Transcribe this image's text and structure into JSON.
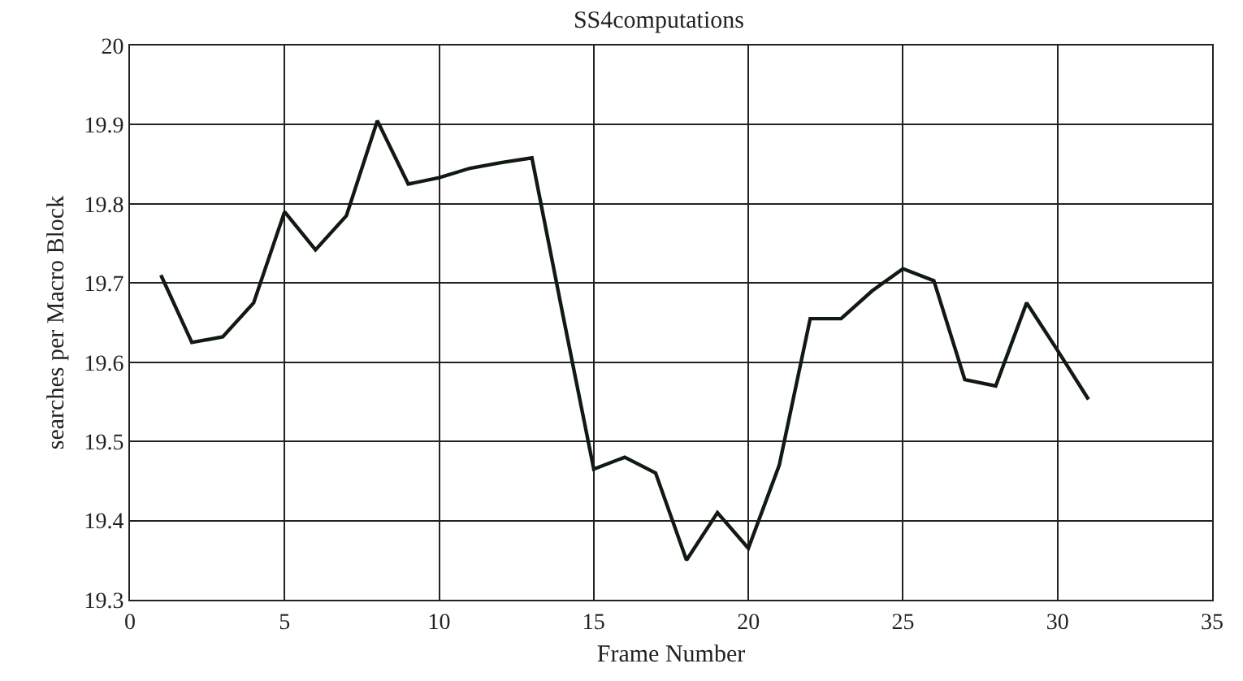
{
  "chart_data": {
    "type": "line",
    "title": "SS4computations",
    "xlabel": "Frame Number",
    "ylabel": "searches per Macro Block",
    "x": [
      1,
      2,
      3,
      4,
      5,
      6,
      7,
      8,
      9,
      10,
      11,
      12,
      13,
      14,
      15,
      16,
      17,
      18,
      19,
      20,
      21,
      22,
      23,
      24,
      25,
      26,
      27,
      28,
      29,
      30,
      31
    ],
    "series": [
      {
        "color": "#111a11",
        "values": [
          19.71,
          19.625,
          19.632,
          19.675,
          19.79,
          19.742,
          19.785,
          19.905,
          19.825,
          19.833,
          19.845,
          19.852,
          19.858,
          19.66,
          19.465,
          19.48,
          19.46,
          19.35,
          19.41,
          19.365,
          19.47,
          19.655,
          19.655,
          19.69,
          19.718,
          19.703,
          19.578,
          19.57,
          19.675,
          19.615,
          19.553
        ]
      }
    ],
    "xlim": [
      0,
      35
    ],
    "xticks": [
      0,
      5,
      10,
      15,
      20,
      25,
      30,
      35
    ],
    "ylim": [
      19.3,
      20
    ],
    "yticks": [
      {
        "value": 19.3,
        "label": "19.3"
      },
      {
        "value": 19.4,
        "label": "19.4"
      },
      {
        "value": 19.5,
        "label": "19.5"
      },
      {
        "value": 19.6,
        "label": "19.6"
      },
      {
        "value": 19.7,
        "label": "19.7"
      },
      {
        "value": 19.8,
        "label": "19.8"
      },
      {
        "value": 19.9,
        "label": "19.9"
      },
      {
        "value": 20,
        "label": "20"
      }
    ],
    "grid": true,
    "marker": "none",
    "line_style": "solid"
  }
}
